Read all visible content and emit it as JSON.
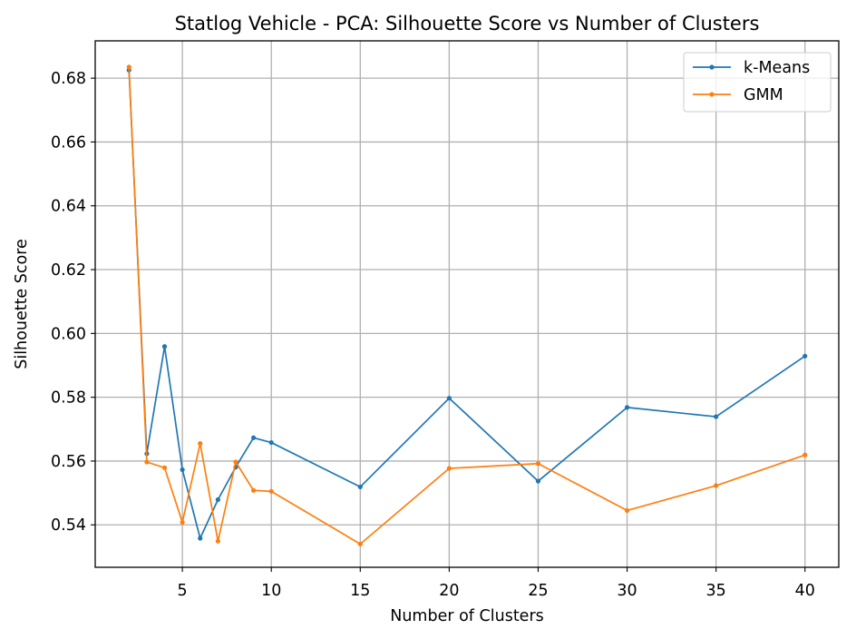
{
  "chart_data": {
    "type": "line",
    "title": "Statlog Vehicle - PCA: Silhouette Score vs Number of Clusters",
    "xlabel": "Number of Clusters",
    "ylabel": "Silhouette Score",
    "xlim": [
      0.1,
      41.9
    ],
    "ylim": [
      0.5267,
      0.6917
    ],
    "xticks": [
      5,
      10,
      15,
      20,
      25,
      30,
      35,
      40
    ],
    "yticks": [
      0.54,
      0.56,
      0.58,
      0.6,
      0.62,
      0.64,
      0.66,
      0.68
    ],
    "ytick_labels": [
      "0.54",
      "0.56",
      "0.58",
      "0.60",
      "0.62",
      "0.64",
      "0.66",
      "0.68"
    ],
    "grid": true,
    "legend_position": "top-right",
    "x": [
      2,
      3,
      4,
      5,
      6,
      7,
      8,
      9,
      10,
      15,
      20,
      25,
      30,
      35,
      40
    ],
    "series": [
      {
        "name": "k-Means",
        "color": "#1f77b4",
        "values": [
          0.6825,
          0.5623,
          0.5959,
          0.5573,
          0.5358,
          0.5479,
          0.5581,
          0.5673,
          0.5658,
          0.5519,
          0.5797,
          0.5537,
          0.5768,
          0.5739,
          0.5929
        ]
      },
      {
        "name": "GMM",
        "color": "#ff7f0e",
        "values": [
          0.6835,
          0.5597,
          0.5579,
          0.5408,
          0.5655,
          0.5349,
          0.5597,
          0.5508,
          0.5505,
          0.534,
          0.5577,
          0.5592,
          0.5445,
          0.5523,
          0.5619
        ]
      }
    ]
  }
}
